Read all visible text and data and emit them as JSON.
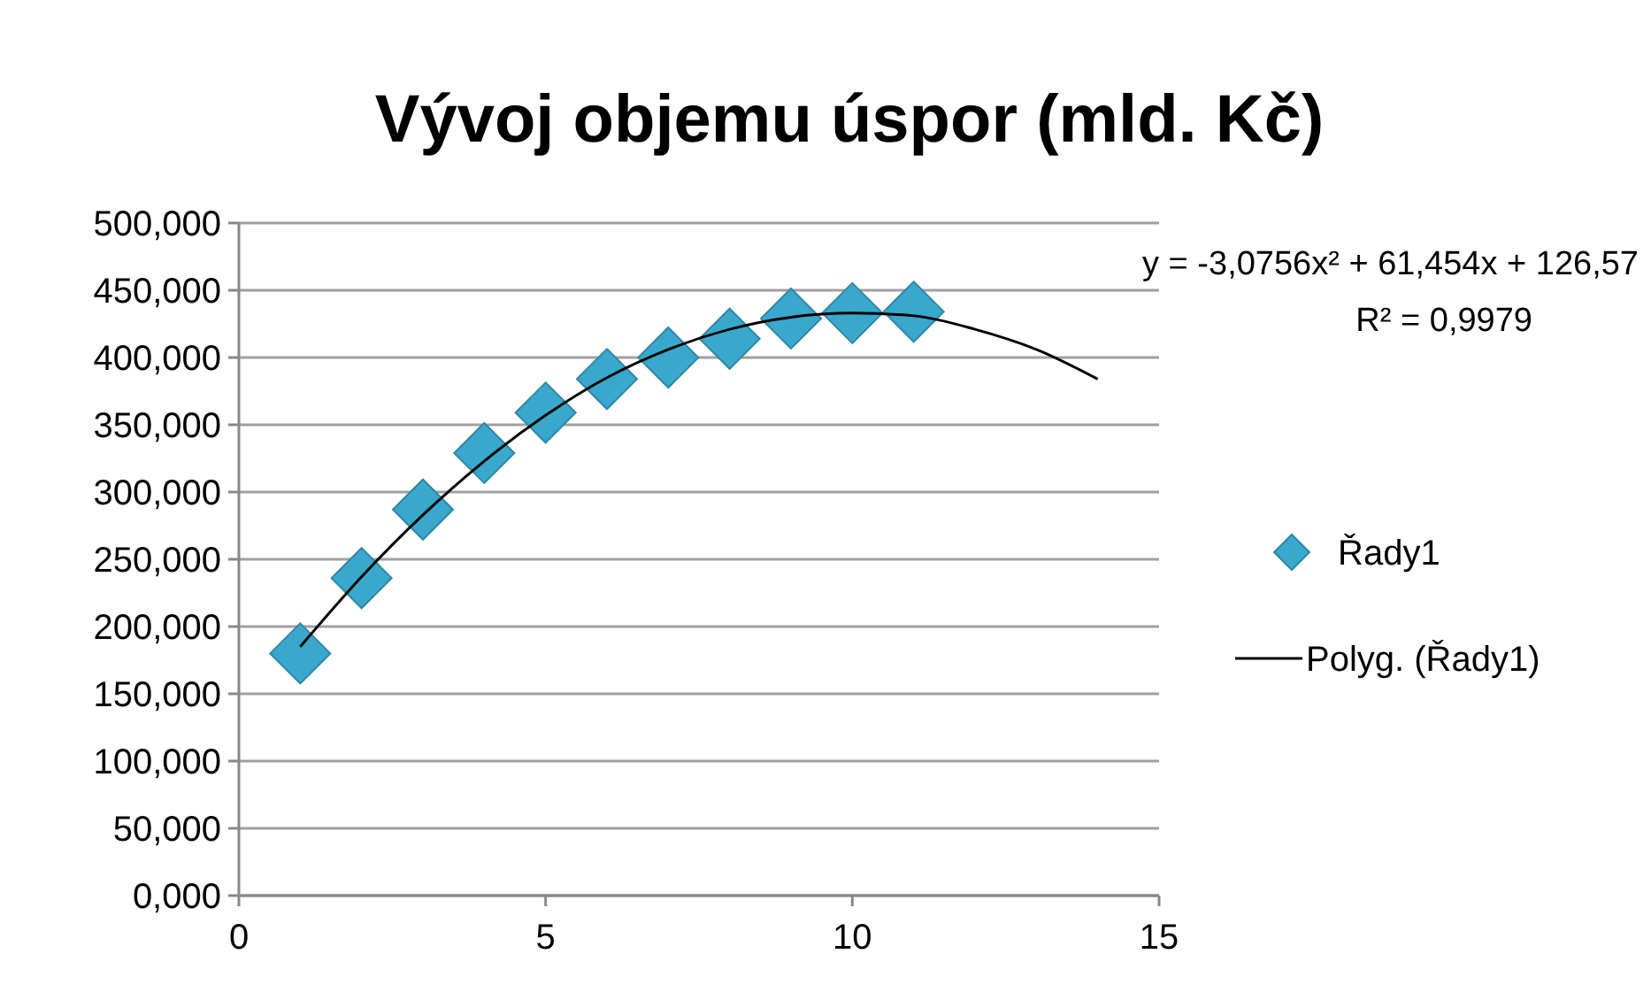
{
  "chart_data": {
    "type": "scatter",
    "title": "Vývoj objemu úspor (mld. Kč)",
    "xlim": [
      0,
      15
    ],
    "xticks": [
      0,
      5,
      10,
      15
    ],
    "ylim": [
      0,
      500
    ],
    "yticks": [
      {
        "value": 0,
        "label": "0,000"
      },
      {
        "value": 50,
        "label": "50,000"
      },
      {
        "value": 100,
        "label": "100,000"
      },
      {
        "value": 150,
        "label": "150,000"
      },
      {
        "value": 200,
        "label": "200,000"
      },
      {
        "value": 250,
        "label": "250,000"
      },
      {
        "value": 300,
        "label": "300,000"
      },
      {
        "value": 350,
        "label": "350,000"
      },
      {
        "value": 400,
        "label": "400,000"
      },
      {
        "value": 450,
        "label": "450,000"
      },
      {
        "value": 500,
        "label": "500,000"
      }
    ],
    "grid": "y",
    "legend": "right",
    "marker": "diamond",
    "series": [
      {
        "name": "Řady1",
        "color": "#3aa8cc",
        "x": [
          1,
          2,
          3,
          4,
          5,
          6,
          7,
          8,
          9,
          10,
          11
        ],
        "values": [
          180,
          236,
          287,
          329,
          359,
          384,
          400,
          414,
          429,
          433,
          434
        ]
      },
      {
        "name": "Polyg. (Řady1)",
        "type": "line",
        "color": "#000000",
        "line_style": "solid",
        "marker": "none",
        "x": [
          1,
          2,
          3,
          4,
          5,
          6,
          7,
          8,
          9,
          10,
          11,
          12,
          13,
          14
        ],
        "values": [
          185,
          237,
          283,
          323,
          357,
          385,
          406,
          421,
          430,
          433,
          431,
          421,
          406,
          384
        ]
      }
    ],
    "annotations": [
      "y = -3,0756x² + 61,454x + 126,57",
      "R² = 0,9979"
    ]
  }
}
